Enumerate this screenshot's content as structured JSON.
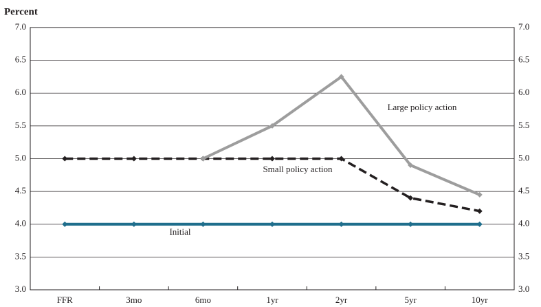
{
  "chart_data": {
    "type": "line",
    "title": "Percent",
    "categories": [
      "FFR",
      "3mo",
      "6mo",
      "1yr",
      "2yr",
      "5yr",
      "10yr"
    ],
    "series": [
      {
        "name": "Initial",
        "color": "#1f6e8c",
        "dashed": false,
        "values": [
          4,
          4,
          4,
          4,
          4,
          4,
          4
        ]
      },
      {
        "name": "Small policy action",
        "color": "#231f20",
        "dashed": true,
        "values": [
          5,
          5,
          5,
          5,
          5,
          4.4,
          4.2
        ]
      },
      {
        "name": "Large policy action",
        "color": "#9d9d9d",
        "dashed": false,
        "values": [
          null,
          null,
          5,
          5.5,
          6.25,
          4.9,
          4.45
        ]
      }
    ],
    "ylim": [
      3,
      7
    ],
    "yticks": [
      {
        "value": 3,
        "label": "3.0"
      },
      {
        "value": 3.5,
        "label": "3.5"
      },
      {
        "value": 4,
        "label": "4.0"
      },
      {
        "value": 4.5,
        "label": "4.5"
      },
      {
        "value": 5,
        "label": "5.0"
      },
      {
        "value": 5.5,
        "label": "5.5"
      },
      {
        "value": 6,
        "label": "6.0"
      },
      {
        "value": 6.5,
        "label": "6.5"
      },
      {
        "value": 7,
        "label": "7.0"
      }
    ],
    "grid": true
  }
}
